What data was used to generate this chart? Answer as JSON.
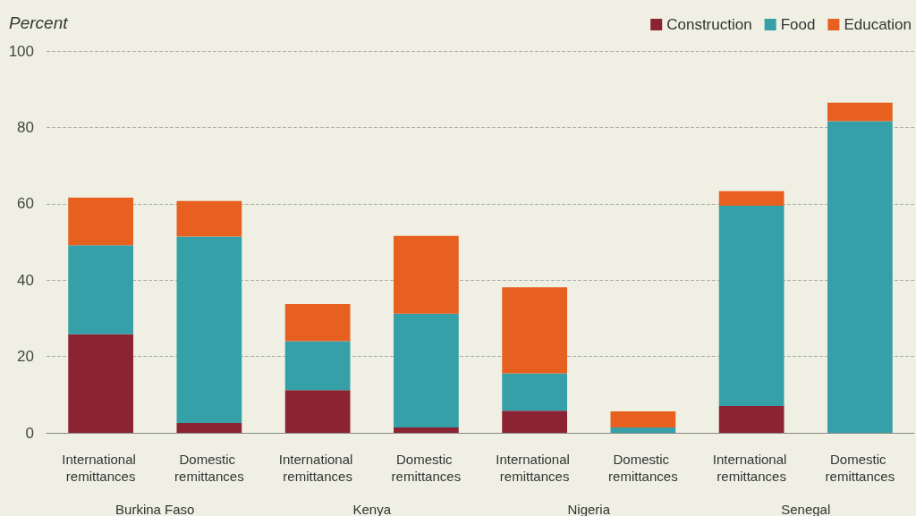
{
  "chart_data": {
    "type": "bar",
    "stacked": true,
    "ylabel": "Percent",
    "categories": [
      "International remittances",
      "Domestic remittances",
      "International remittances",
      "Domestic remittances",
      "International remittances",
      "Domestic remittances",
      "International remittances",
      "Domestic remittances"
    ],
    "series": [
      {
        "name": "Construction",
        "color": "#8b2332",
        "values": [
          25.8,
          2.6,
          11.2,
          1.4,
          5.8,
          0,
          7.0,
          0
        ]
      },
      {
        "name": "Food",
        "color": "#35a0a8",
        "values": [
          23.3,
          48.8,
          12.8,
          29.8,
          9.8,
          1.4,
          52.5,
          81.6
        ]
      },
      {
        "name": "Education",
        "color": "#e86020",
        "values": [
          12.5,
          9.3,
          9.7,
          20.4,
          22.5,
          4.2,
          3.8,
          4.9
        ]
      }
    ],
    "annotations": [
      "Burkina Faso",
      "Kenya",
      "Nigeria",
      "Senegal"
    ],
    "ylim": [
      0,
      100
    ],
    "yticks": [
      0,
      20,
      40,
      60,
      80,
      100
    ],
    "grid": "y",
    "legend": "top right"
  }
}
